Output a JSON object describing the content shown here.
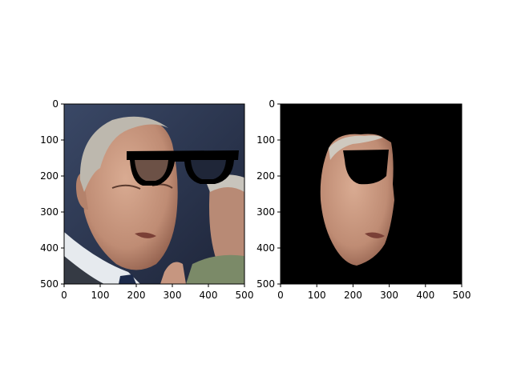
{
  "chart_data": [
    {
      "type": "image",
      "panel": "left",
      "content": "photo-with-glasses-overlay",
      "xlim": [
        0,
        500
      ],
      "ylim": [
        500,
        0
      ],
      "xticks": [
        0,
        100,
        200,
        300,
        400,
        500
      ],
      "yticks": [
        0,
        100,
        200,
        300,
        400,
        500
      ],
      "xtick_labels": [
        "0",
        "100",
        "200",
        "300",
        "400",
        "500"
      ],
      "ytick_labels": [
        "0",
        "100",
        "200",
        "300",
        "400",
        "500"
      ],
      "background": "#2a3550"
    },
    {
      "type": "image",
      "panel": "right",
      "content": "face-mask-on-black",
      "xlim": [
        0,
        500
      ],
      "ylim": [
        500,
        0
      ],
      "xticks": [
        0,
        100,
        200,
        300,
        400,
        500
      ],
      "yticks": [
        0,
        100,
        200,
        300,
        400,
        500
      ],
      "xtick_labels": [
        "0",
        "100",
        "200",
        "300",
        "400",
        "500"
      ],
      "ytick_labels": [
        "0",
        "100",
        "200",
        "300",
        "400",
        "500"
      ],
      "background": "#000000"
    }
  ],
  "colors": {
    "skin": "#c99a82",
    "skin_shadow": "#a9735d",
    "hair": "#b8b4ac",
    "suit": "#3a3f4a",
    "shirt": "#e8ecef",
    "glasses": "#000000"
  }
}
